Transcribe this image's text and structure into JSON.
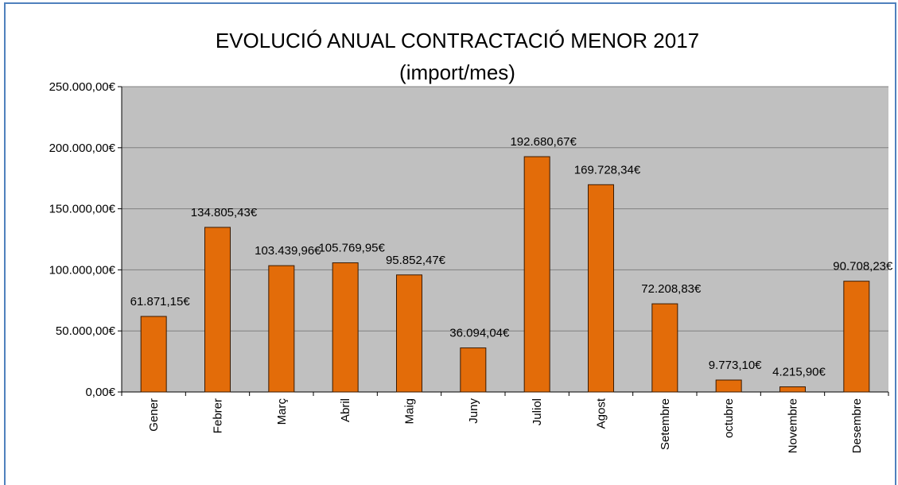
{
  "chart_data": {
    "type": "bar",
    "title": "EVOLUCIÓ ANUAL CONTRACTACIÓ MENOR 2017",
    "subtitle": "(import/mes)",
    "categories": [
      "Gener",
      "Febrer",
      "Març",
      "Abril",
      "Maig",
      "Juny",
      "Juliol",
      "Agost",
      "Setembre",
      "octubre",
      "Novembre",
      "Desembre"
    ],
    "values": [
      61871.15,
      134805.43,
      103439.96,
      105769.95,
      95852.47,
      36094.04,
      192680.67,
      169728.34,
      72208.83,
      9773.1,
      4215.9,
      90708.23
    ],
    "value_labels": [
      "61.871,15€",
      "134.805,43€",
      "103.439,96€",
      "105.769,95€",
      "95.852,47€",
      "36.094,04€",
      "192.680,67€",
      "169.728,34€",
      "72.208,83€",
      "9.773,10€",
      "4.215,90€",
      "90.708,23€"
    ],
    "color": "#e36c09",
    "ylim": [
      0,
      250000
    ],
    "yticks": [
      {
        "value": 0,
        "label": "0,00€"
      },
      {
        "value": 50000,
        "label": "50.000,00€"
      },
      {
        "value": 100000,
        "label": "100.000,00€"
      },
      {
        "value": 150000,
        "label": "150.000,00€"
      },
      {
        "value": 200000,
        "label": "200.000,00€"
      },
      {
        "value": 250000,
        "label": "250.000,00€"
      }
    ],
    "grid": true
  }
}
